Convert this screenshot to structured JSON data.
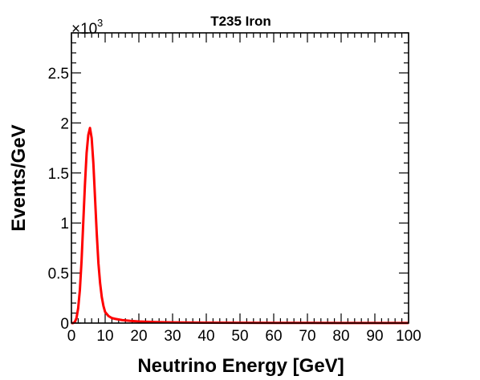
{
  "chart_data": {
    "type": "line",
    "title": "T235 Iron",
    "xlabel": "Neutrino Energy [GeV]",
    "ylabel": "Events/GeV",
    "y_multiplier": {
      "base": "×10",
      "exponent": "3"
    },
    "xlim": [
      0,
      100
    ],
    "ylim": [
      0,
      2900
    ],
    "x_ticks": [
      0,
      10,
      20,
      30,
      40,
      50,
      60,
      70,
      80,
      90,
      100
    ],
    "x_tick_labels": [
      "0",
      "10",
      "20",
      "30",
      "40",
      "50",
      "60",
      "70",
      "80",
      "90",
      "100"
    ],
    "y_ticks": [
      0,
      500,
      1000,
      1500,
      2000,
      2500
    ],
    "y_tick_labels": [
      "0",
      "0.5",
      "1",
      "1.5",
      "2",
      "2.5"
    ],
    "grid": false,
    "legend": "none",
    "series": [
      {
        "color": "#ff0000",
        "x": [
          0,
          0.5,
          1.0,
          1.5,
          2.0,
          2.5,
          3.0,
          3.5,
          4.0,
          4.5,
          5.0,
          5.5,
          6.0,
          6.5,
          7.0,
          7.5,
          8.0,
          8.5,
          9.0,
          9.5,
          10.0,
          11.0,
          12.0,
          13.0,
          14.0,
          15.0,
          17.5,
          20.0,
          25.0,
          30.0,
          40.0,
          50.0,
          60.0,
          70.0,
          80.0,
          90.0,
          100.0
        ],
        "y": [
          0,
          0,
          10,
          50,
          150,
          330,
          620,
          1000,
          1380,
          1700,
          1880,
          1950,
          1850,
          1600,
          1250,
          900,
          600,
          400,
          260,
          170,
          110,
          70,
          50,
          42,
          36,
          30,
          22,
          16,
          10,
          7,
          4,
          3,
          2,
          2,
          1,
          1,
          1
        ]
      }
    ]
  }
}
